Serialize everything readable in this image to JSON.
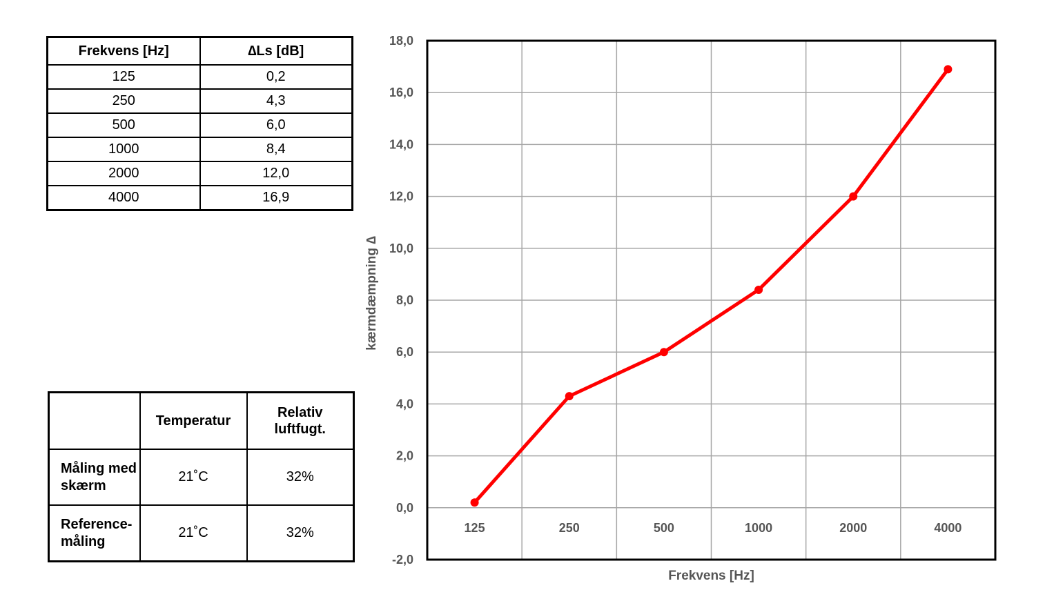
{
  "freq_table": {
    "headers": [
      "Frekvens [Hz]",
      "∆Ls [dB]"
    ],
    "rows": [
      [
        "125",
        "0,2"
      ],
      [
        "250",
        "4,3"
      ],
      [
        "500",
        "6,0"
      ],
      [
        "1000",
        "8,4"
      ],
      [
        "2000",
        "12,0"
      ],
      [
        "4000",
        "16,9"
      ]
    ]
  },
  "conditions_table": {
    "headers": [
      "",
      "Temperatur",
      "Relativ luftfugt."
    ],
    "rows": [
      [
        "Måling med skærm",
        "21˚C",
        "32%"
      ],
      [
        "Reference-måling",
        "21˚C",
        "32%"
      ]
    ]
  },
  "chart_data": {
    "type": "line",
    "categories": [
      "125",
      "250",
      "500",
      "1000",
      "2000",
      "4000"
    ],
    "series": [
      {
        "values": [
          0.2,
          4.3,
          6.0,
          8.4,
          12.0,
          16.9
        ],
        "color": "#ff0000"
      }
    ],
    "xlabel": "Frekvens [Hz]",
    "ylabel": "kærmdæmpning ∆",
    "ylim": [
      -2.0,
      18.0
    ],
    "yticks": [
      "-2,0",
      "0,0",
      "2,0",
      "4,0",
      "6,0",
      "8,0",
      "10,0",
      "12,0",
      "14,0",
      "16,0",
      "18,0"
    ],
    "grid": true,
    "legend": "none"
  }
}
